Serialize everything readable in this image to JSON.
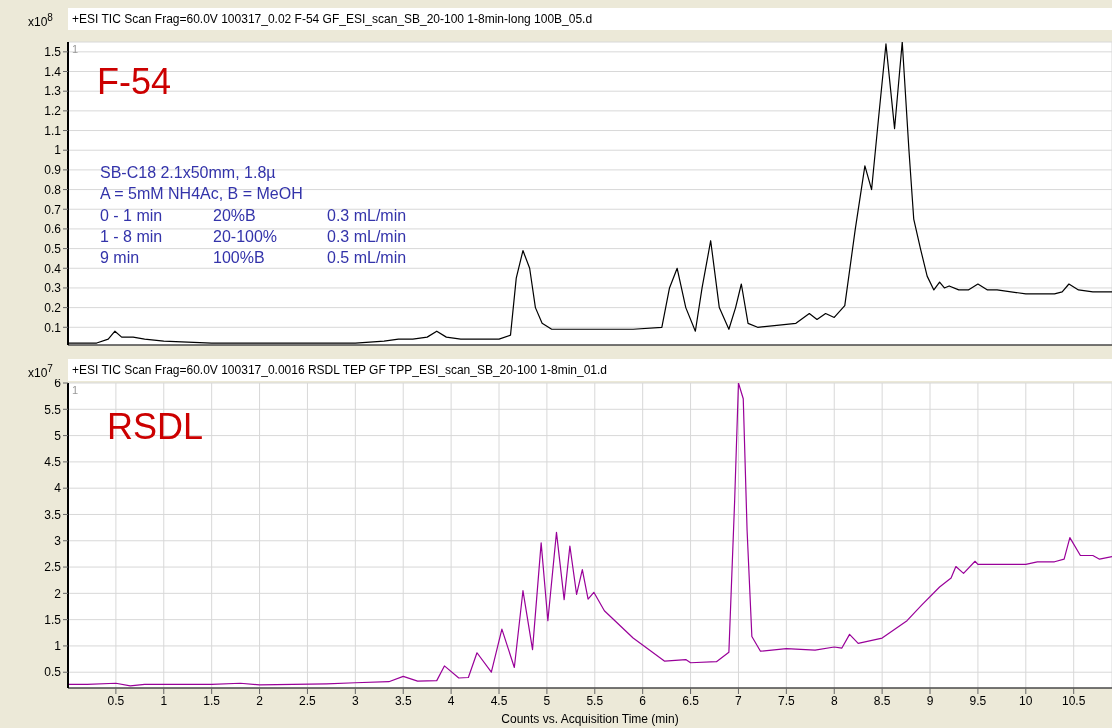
{
  "chart_data": [
    {
      "type": "line",
      "title": "+ESI TIC Scan Frag=60.0V 100317_0.02 F-54 GF_ESI_scan_SB_20-100 1-8min-long 100B_05.d",
      "ylabel": "x10$^{8}$",
      "annotations": [
        "1",
        "F-54",
        "SB-C18 2.1x50mm, 1.8µ",
        "A = 5mM NH4Ac, B = MeOH",
        "0 - 1 min",
        "20%B",
        "0.3 mL/min",
        "1 - 8 min",
        "20-100%",
        "0.3 mL/min",
        "9 min",
        "100%B",
        "0.5 mL/min"
      ],
      "x": [
        0,
        0.3,
        0.42,
        0.49,
        0.56,
        0.62,
        0.68,
        0.8,
        1.0,
        1.5,
        2.0,
        2.5,
        3.0,
        3.3,
        3.45,
        3.6,
        3.75,
        3.85,
        3.95,
        4.1,
        4.5,
        4.62,
        4.68,
        4.75,
        4.82,
        4.88,
        4.95,
        5.05,
        5.3,
        5.6,
        5.9,
        6.2,
        6.28,
        6.36,
        6.45,
        6.55,
        6.62,
        6.71,
        6.8,
        6.9,
        6.97,
        7.03,
        7.1,
        7.2,
        7.4,
        7.6,
        7.74,
        7.82,
        7.91,
        8.0,
        8.11,
        8.22,
        8.32,
        8.39,
        8.46,
        8.54,
        8.63,
        8.71,
        8.78,
        8.83,
        8.9,
        8.97,
        9.04,
        9.1,
        9.15,
        9.2,
        9.3,
        9.4,
        9.5,
        9.6,
        9.7,
        10.0,
        10.3,
        10.38,
        10.45,
        10.55,
        10.7,
        10.9
      ],
      "series": [
        {
          "color": "#000000",
          "values": [
            0.02,
            0.02,
            0.04,
            0.08,
            0.05,
            0.05,
            0.05,
            0.04,
            0.03,
            0.02,
            0.02,
            0.02,
            0.02,
            0.03,
            0.04,
            0.04,
            0.05,
            0.08,
            0.05,
            0.04,
            0.04,
            0.06,
            0.35,
            0.49,
            0.4,
            0.2,
            0.12,
            0.09,
            0.09,
            0.09,
            0.09,
            0.1,
            0.3,
            0.4,
            0.2,
            0.08,
            0.3,
            0.54,
            0.2,
            0.09,
            0.2,
            0.32,
            0.12,
            0.1,
            0.11,
            0.12,
            0.17,
            0.14,
            0.17,
            0.15,
            0.21,
            0.6,
            0.92,
            0.8,
            1.15,
            1.54,
            1.11,
            1.55,
            1.0,
            0.65,
            0.5,
            0.36,
            0.29,
            0.33,
            0.3,
            0.31,
            0.29,
            0.29,
            0.32,
            0.29,
            0.29,
            0.27,
            0.27,
            0.28,
            0.32,
            0.29,
            0.28,
            0.28
          ]
        }
      ],
      "xlim": [
        0,
        10.9
      ],
      "xticks": [
        0.5,
        1,
        1.5,
        2,
        2.5,
        3,
        3.5,
        4,
        4.5,
        5,
        5.5,
        6,
        6.5,
        7,
        7.5,
        8,
        8.5,
        9,
        9.5,
        10,
        10.5
      ],
      "ylim": [
        0.01,
        1.55
      ],
      "yticks": [
        0.1,
        0.2,
        0.3,
        0.4,
        0.5,
        0.6,
        0.7,
        0.8,
        0.9,
        1,
        1.1,
        1.2,
        1.3,
        1.4,
        1.5
      ],
      "grid": true,
      "tick_labels": "y"
    },
    {
      "type": "line",
      "title": "+ESI TIC Scan Frag=60.0V 100317_0.0016 RSDL TEP GF TPP_ESI_scan_SB_20-100 1-8min_01.d",
      "ylabel": "x10$^{7}$",
      "xlabel": "Counts vs. Acquisition Time (min)",
      "annotations": [
        "1",
        "RSDL"
      ],
      "x": [
        0,
        0.2,
        0.5,
        0.65,
        0.8,
        1.5,
        1.8,
        2.0,
        2.7,
        3.0,
        3.35,
        3.5,
        3.65,
        3.85,
        3.93,
        4.08,
        4.18,
        4.27,
        4.42,
        4.53,
        4.66,
        4.75,
        4.85,
        4.94,
        5.01,
        5.1,
        5.18,
        5.24,
        5.31,
        5.37,
        5.43,
        5.49,
        5.6,
        5.9,
        6.23,
        6.45,
        6.5,
        6.77,
        6.9,
        6.96,
        7.0,
        7.05,
        7.09,
        7.14,
        7.23,
        7.5,
        7.8,
        8.0,
        8.08,
        8.16,
        8.25,
        8.5,
        8.76,
        8.91,
        9.1,
        9.22,
        9.27,
        9.35,
        9.47,
        9.5,
        10.0,
        10.12,
        10.3,
        10.4,
        10.46,
        10.57,
        10.7,
        10.77,
        10.9
      ],
      "series": [
        {
          "color": "#990099",
          "values": [
            0.27,
            0.27,
            0.29,
            0.24,
            0.27,
            0.27,
            0.29,
            0.26,
            0.28,
            0.3,
            0.32,
            0.42,
            0.33,
            0.34,
            0.62,
            0.39,
            0.4,
            0.87,
            0.5,
            1.32,
            0.59,
            2.05,
            0.93,
            2.96,
            1.48,
            3.16,
            1.88,
            2.9,
            1.98,
            2.45,
            1.89,
            2.02,
            1.67,
            1.15,
            0.71,
            0.74,
            0.68,
            0.7,
            0.88,
            3.75,
            6.0,
            5.7,
            3.2,
            1.18,
            0.9,
            0.95,
            0.92,
            0.98,
            0.96,
            1.22,
            1.05,
            1.15,
            1.48,
            1.77,
            2.12,
            2.29,
            2.51,
            2.38,
            2.61,
            2.55,
            2.55,
            2.6,
            2.6,
            2.65,
            3.06,
            2.72,
            2.72,
            2.65,
            2.7
          ]
        }
      ],
      "xlim": [
        0,
        10.9
      ],
      "xticks": [
        0.5,
        1,
        1.5,
        2,
        2.5,
        3,
        3.5,
        4,
        4.5,
        5,
        5.5,
        6,
        6.5,
        7,
        7.5,
        8,
        8.5,
        9,
        9.5,
        10,
        10.5
      ],
      "ylim": [
        0.2,
        6
      ],
      "yticks": [
        0.5,
        1,
        1.5,
        2,
        2.5,
        3,
        3.5,
        4,
        4.5,
        5,
        5.5,
        6
      ],
      "grid": true
    }
  ]
}
